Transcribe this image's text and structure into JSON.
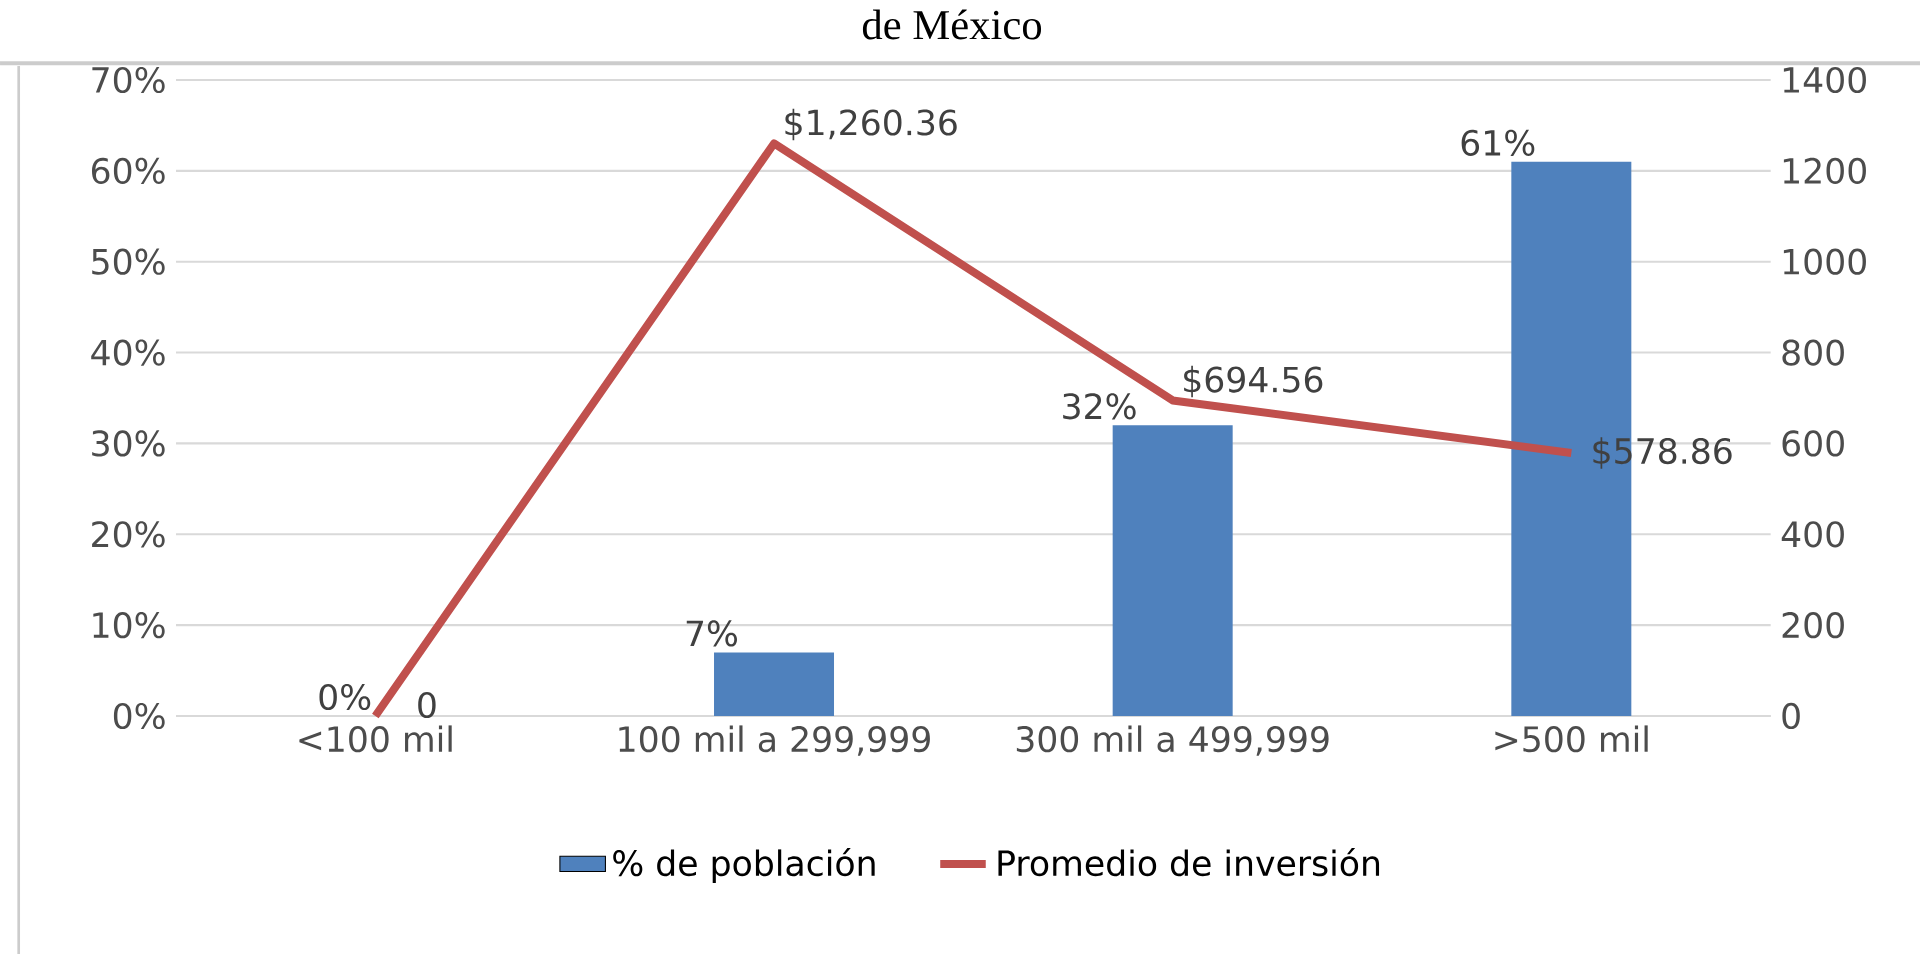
{
  "chart_data": {
    "type": "bar",
    "title": "de México",
    "categories": [
      "<100 mil",
      "100 mil a 299,999",
      "300 mil a 499,999",
      ">500 mil"
    ],
    "series": [
      {
        "name": "% de población",
        "color": "#4f81bd",
        "values": [
          0,
          7,
          32,
          61
        ],
        "value_labels": [
          "0%",
          "7%",
          "32%",
          "61%"
        ]
      },
      {
        "name": "Promedio de inversión",
        "type": "line",
        "axis": "y2",
        "color": "#c0504d",
        "values": [
          0,
          1260.36,
          694.56,
          578.86
        ],
        "value_labels": [
          "0",
          "$1,260.36",
          "$694.56",
          "$578.86"
        ]
      }
    ],
    "ylim": [
      0,
      70
    ],
    "yticks": [
      {
        "value": 0,
        "label": "0%"
      },
      {
        "value": 10,
        "label": "10%"
      },
      {
        "value": 20,
        "label": "20%"
      },
      {
        "value": 30,
        "label": "30%"
      },
      {
        "value": 40,
        "label": "40%"
      },
      {
        "value": 50,
        "label": "50%"
      },
      {
        "value": 60,
        "label": "60%"
      },
      {
        "value": 70,
        "label": "70%"
      }
    ],
    "y2lim": [
      0,
      1400
    ],
    "y2ticks": [
      0,
      200,
      400,
      600,
      800,
      1000,
      1200,
      1400
    ],
    "grid": "y",
    "legend": "bottom",
    "marker": "none"
  }
}
